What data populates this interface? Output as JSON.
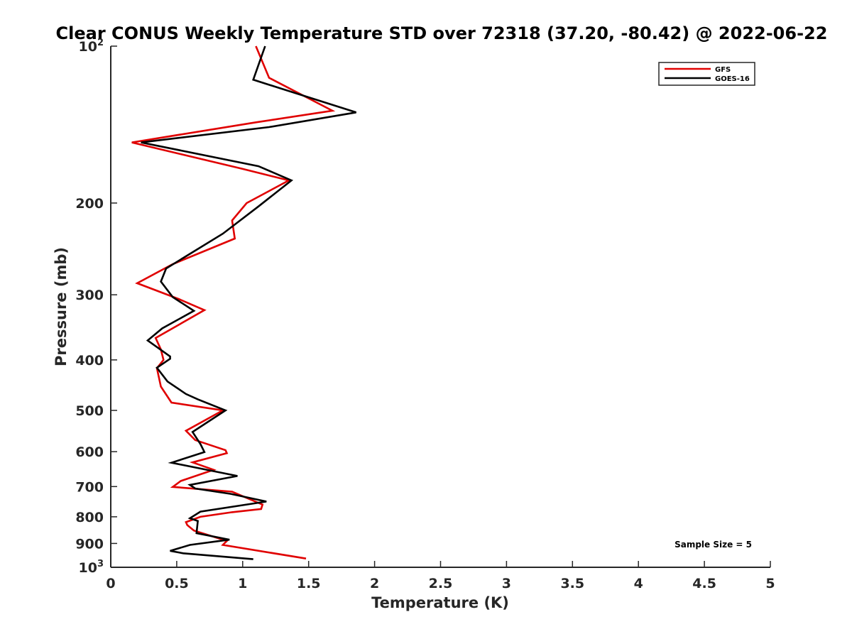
{
  "chart_data": {
    "type": "line",
    "title": "Clear CONUS Weekly Temperature STD over 72318 (37.20, -80.42) @ 2022-06-22",
    "xlabel": "Temperature (K)",
    "ylabel": "Pressure (mb)",
    "xlim": [
      0,
      5
    ],
    "ylim": [
      100,
      1000
    ],
    "y_scale": "log",
    "y_reversed": true,
    "grid": false,
    "legend_position": "top-right",
    "x_ticks": [
      {
        "value": 0,
        "label": "0"
      },
      {
        "value": 0.5,
        "label": "0.5"
      },
      {
        "value": 1,
        "label": "1"
      },
      {
        "value": 1.5,
        "label": "1.5"
      },
      {
        "value": 2,
        "label": "2"
      },
      {
        "value": 2.5,
        "label": "2.5"
      },
      {
        "value": 3,
        "label": "3"
      },
      {
        "value": 3.5,
        "label": "3.5"
      },
      {
        "value": 4,
        "label": "4"
      },
      {
        "value": 4.5,
        "label": "4.5"
      },
      {
        "value": 5,
        "label": "5"
      }
    ],
    "y_ticks": [
      {
        "value": 100,
        "label": "10",
        "sup": "2"
      },
      {
        "value": 200,
        "label": "200",
        "sup": ""
      },
      {
        "value": 300,
        "label": "300",
        "sup": ""
      },
      {
        "value": 400,
        "label": "400",
        "sup": ""
      },
      {
        "value": 500,
        "label": "500",
        "sup": ""
      },
      {
        "value": 600,
        "label": "600",
        "sup": ""
      },
      {
        "value": 700,
        "label": "700",
        "sup": ""
      },
      {
        "value": 800,
        "label": "800",
        "sup": ""
      },
      {
        "value": 900,
        "label": "900",
        "sup": ""
      },
      {
        "value": 1000,
        "label": "10",
        "sup": "3"
      }
    ],
    "series": [
      {
        "name": "GFS",
        "color": "#e00000",
        "points": [
          [
            1.1,
            100
          ],
          [
            1.2,
            115
          ],
          [
            1.68,
            133
          ],
          [
            1.1,
            140
          ],
          [
            0.16,
            153
          ],
          [
            1.0,
            172
          ],
          [
            1.35,
            181
          ],
          [
            1.03,
            200
          ],
          [
            0.92,
            216
          ],
          [
            0.94,
            234
          ],
          [
            0.47,
            262
          ],
          [
            0.2,
            285
          ],
          [
            0.52,
            306
          ],
          [
            0.71,
            321
          ],
          [
            0.34,
            363
          ],
          [
            0.38,
            382
          ],
          [
            0.4,
            400
          ],
          [
            0.35,
            415
          ],
          [
            0.38,
            450
          ],
          [
            0.46,
            483
          ],
          [
            0.85,
            500
          ],
          [
            0.57,
            547
          ],
          [
            0.64,
            570
          ],
          [
            0.87,
            596
          ],
          [
            0.88,
            604
          ],
          [
            0.62,
            629
          ],
          [
            0.78,
            650
          ],
          [
            0.53,
            683
          ],
          [
            0.47,
            701
          ],
          [
            0.92,
            716
          ],
          [
            1.15,
            758
          ],
          [
            1.14,
            773
          ],
          [
            0.92,
            784
          ],
          [
            0.68,
            800
          ],
          [
            0.57,
            819
          ],
          [
            0.58,
            830
          ],
          [
            0.63,
            850
          ],
          [
            0.88,
            890
          ],
          [
            0.85,
            906
          ],
          [
            1.48,
            962
          ]
        ]
      },
      {
        "name": "GOES-16",
        "color": "#000000",
        "points": [
          [
            1.17,
            100
          ],
          [
            1.08,
            116
          ],
          [
            1.86,
            134
          ],
          [
            1.2,
            143
          ],
          [
            0.23,
            153
          ],
          [
            1.12,
            170
          ],
          [
            1.37,
            181
          ],
          [
            1.12,
            203
          ],
          [
            0.85,
            229
          ],
          [
            0.42,
            267
          ],
          [
            0.38,
            283
          ],
          [
            0.47,
            303
          ],
          [
            0.63,
            322
          ],
          [
            0.39,
            348
          ],
          [
            0.28,
            367
          ],
          [
            0.45,
            394
          ],
          [
            0.45,
            398
          ],
          [
            0.35,
            414
          ],
          [
            0.43,
            440
          ],
          [
            0.57,
            465
          ],
          [
            0.66,
            476
          ],
          [
            0.87,
            500
          ],
          [
            0.62,
            550
          ],
          [
            0.68,
            580
          ],
          [
            0.71,
            601
          ],
          [
            0.46,
            630
          ],
          [
            0.96,
            668
          ],
          [
            0.6,
            695
          ],
          [
            0.64,
            706
          ],
          [
            0.91,
            723
          ],
          [
            1.18,
            748
          ],
          [
            0.68,
            782
          ],
          [
            0.6,
            805
          ],
          [
            0.66,
            815
          ],
          [
            0.65,
            860
          ],
          [
            0.9,
            885
          ],
          [
            0.6,
            906
          ],
          [
            0.45,
            930
          ],
          [
            0.55,
            940
          ],
          [
            1.08,
            965
          ]
        ]
      }
    ],
    "annotation": "Sample Size = 5"
  }
}
